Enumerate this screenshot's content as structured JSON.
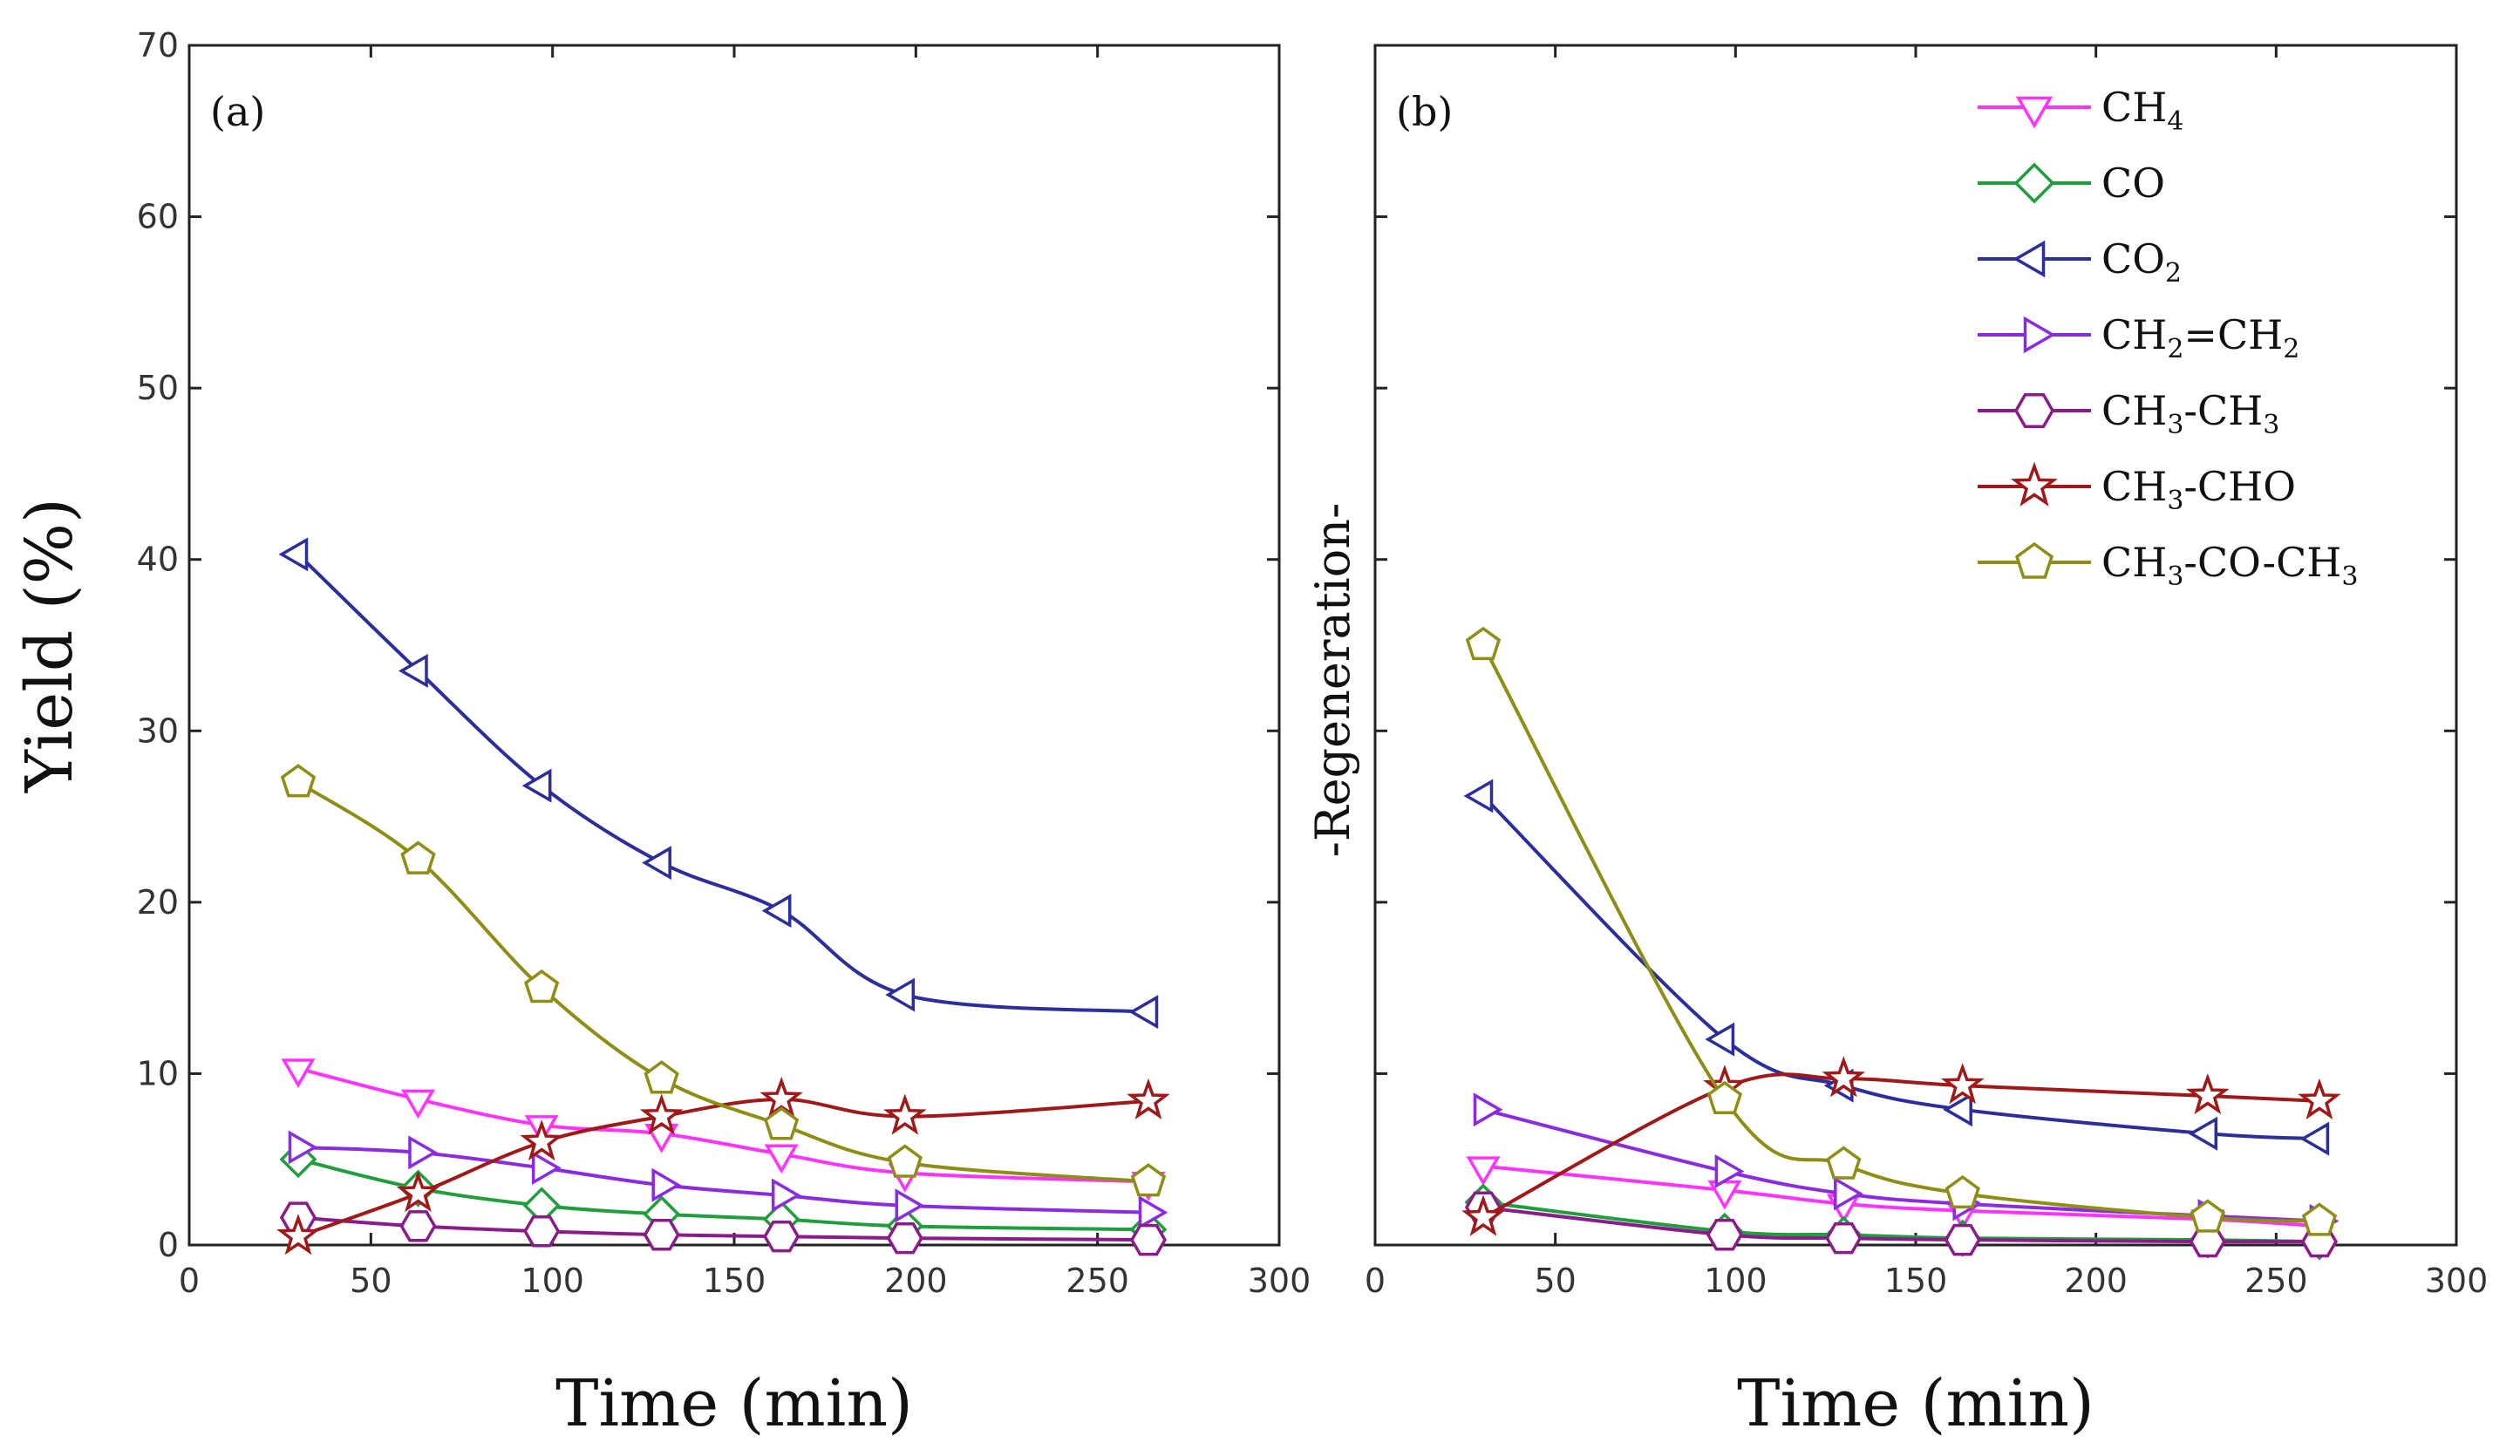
{
  "chart_data": [
    {
      "type": "line",
      "panel_label": "(a)",
      "xlabel": "Time (min)",
      "ylabel": "Yield (%)",
      "xlim": [
        0,
        300
      ],
      "ylim": [
        0,
        70
      ],
      "xticks": [
        0,
        50,
        100,
        150,
        200,
        250,
        300
      ],
      "yticks": [
        0,
        10,
        20,
        30,
        40,
        50,
        60,
        70
      ],
      "series": [
        {
          "name": "CH4",
          "x": [
            30,
            63,
            97,
            130,
            163,
            197,
            264
          ],
          "y": [
            10.3,
            8.5,
            7.0,
            6.5,
            5.3,
            4.2,
            3.7
          ]
        },
        {
          "name": "CO",
          "x": [
            30,
            63,
            97,
            130,
            163,
            197,
            264
          ],
          "y": [
            5.0,
            3.3,
            2.3,
            1.8,
            1.5,
            1.1,
            0.9
          ]
        },
        {
          "name": "CO2",
          "x": [
            30,
            63,
            97,
            130,
            163,
            197,
            264
          ],
          "y": [
            40.3,
            33.5,
            26.8,
            22.3,
            19.5,
            14.6,
            13.6
          ]
        },
        {
          "name": "CH2=CH2",
          "x": [
            30,
            63,
            97,
            130,
            163,
            197,
            264
          ],
          "y": [
            5.7,
            5.4,
            4.5,
            3.5,
            2.9,
            2.3,
            1.9
          ]
        },
        {
          "name": "CH3-CH3",
          "x": [
            30,
            63,
            97,
            130,
            163,
            197,
            264
          ],
          "y": [
            1.6,
            1.1,
            0.8,
            0.6,
            0.5,
            0.4,
            0.3
          ]
        },
        {
          "name": "CH3-CHO",
          "x": [
            30,
            63,
            97,
            130,
            163,
            197,
            264
          ],
          "y": [
            0.5,
            3.0,
            6.0,
            7.5,
            8.5,
            7.5,
            8.4
          ]
        },
        {
          "name": "CH3-CO-CH3",
          "x": [
            30,
            63,
            97,
            130,
            163,
            197,
            264
          ],
          "y": [
            27.0,
            22.5,
            15.0,
            9.7,
            7.0,
            4.8,
            3.7
          ]
        }
      ]
    },
    {
      "type": "line",
      "panel_label": "(b)",
      "xlabel": "Time (min)",
      "ylabel": "-Regeneration-",
      "xlim": [
        0,
        300
      ],
      "ylim": [
        0,
        70
      ],
      "xticks": [
        0,
        50,
        100,
        150,
        200,
        250,
        300
      ],
      "series": [
        {
          "name": "CH4",
          "x": [
            30,
            97,
            130,
            163,
            231,
            262
          ],
          "y": [
            4.6,
            3.2,
            2.4,
            2.0,
            1.5,
            1.1
          ]
        },
        {
          "name": "CO",
          "x": [
            30,
            97,
            130,
            163,
            231,
            262
          ],
          "y": [
            2.5,
            0.8,
            0.6,
            0.4,
            0.3,
            0.2
          ]
        },
        {
          "name": "CO2",
          "x": [
            30,
            97,
            130,
            163,
            231,
            262
          ],
          "y": [
            26.2,
            12.0,
            9.3,
            7.9,
            6.5,
            6.2
          ]
        },
        {
          "name": "CH2=CH2",
          "x": [
            30,
            97,
            130,
            163,
            231,
            262
          ],
          "y": [
            7.9,
            4.3,
            3.0,
            2.4,
            1.7,
            1.4
          ]
        },
        {
          "name": "CH3-CH3",
          "x": [
            30,
            97,
            130,
            163,
            231,
            262
          ],
          "y": [
            2.2,
            0.6,
            0.4,
            0.3,
            0.2,
            0.2
          ]
        },
        {
          "name": "CH3-CHO",
          "x": [
            30,
            97,
            130,
            163,
            231,
            262
          ],
          "y": [
            1.6,
            9.2,
            9.7,
            9.3,
            8.7,
            8.4
          ]
        },
        {
          "name": "CH3-CO-CH3",
          "x": [
            30,
            97,
            130,
            163,
            231,
            262
          ],
          "y": [
            35.0,
            8.5,
            4.7,
            3.0,
            1.6,
            1.4
          ]
        }
      ]
    }
  ],
  "legend": [
    {
      "key": "CH4",
      "base": "CH",
      "sub": "4",
      "rest": "",
      "sub2": "",
      "marker": "triangle-down",
      "color": "#ff33ff"
    },
    {
      "key": "CO",
      "base": "CO",
      "sub": "",
      "rest": "",
      "sub2": "",
      "marker": "diamond",
      "color": "#1f9e3c"
    },
    {
      "key": "CO2",
      "base": "CO",
      "sub": "2",
      "rest": "",
      "sub2": "",
      "marker": "triangle-left",
      "color": "#2b2e9c"
    },
    {
      "key": "CH2=CH2",
      "base": "CH",
      "sub": "2",
      "rest": "=CH",
      "sub2": "2",
      "marker": "triangle-right",
      "color": "#8a2be2"
    },
    {
      "key": "CH3-CH3",
      "base": "CH",
      "sub": "3",
      "rest": "-CH",
      "sub2": "3",
      "marker": "hexagon",
      "color": "#8b1a8b"
    },
    {
      "key": "CH3-CHO",
      "base": "CH",
      "sub": "3",
      "rest": "-CHO",
      "sub2": "",
      "marker": "star",
      "color": "#a01818"
    },
    {
      "key": "CH3-CO-CH3",
      "base": "CH",
      "sub": "3",
      "rest": "-CO-CH",
      "sub2": "3",
      "marker": "pentagon",
      "color": "#8e8e14"
    }
  ]
}
